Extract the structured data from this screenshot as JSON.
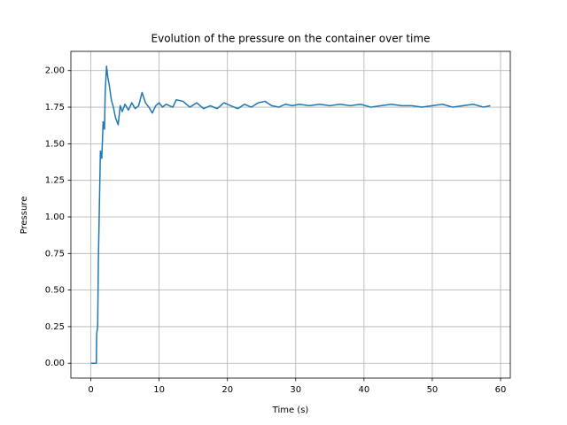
{
  "chart_data": {
    "type": "line",
    "title": "Evolution of the pressure on the container over time",
    "xlabel": "Time (s)",
    "ylabel": "Pressure",
    "x": [
      0,
      0.8,
      0.85,
      1.0,
      1.1,
      1.2,
      1.4,
      1.6,
      1.8,
      2.0,
      2.1,
      2.3,
      2.5,
      2.7,
      3.0,
      3.3,
      3.6,
      4.0,
      4.3,
      4.6,
      5.0,
      5.5,
      6.0,
      6.5,
      7.0,
      7.5,
      8.0,
      8.5,
      9.0,
      9.5,
      10,
      10.5,
      11,
      12,
      12.5,
      13.5,
      14.5,
      15.5,
      16.5,
      17.5,
      18.5,
      19.5,
      20.5,
      21.5,
      22.5,
      23.5,
      24.5,
      25.5,
      26.5,
      27.5,
      28.5,
      29.5,
      30.5,
      32,
      33.5,
      35,
      36.5,
      38,
      39.5,
      41,
      42.5,
      44,
      45.5,
      47,
      48.5,
      50,
      51.5,
      53,
      54.5,
      56,
      57.5,
      58.5
    ],
    "series": [
      {
        "name": "Pressure",
        "color": "#1f77b4",
        "values": [
          0,
          0,
          0.2,
          0.25,
          0.7,
          0.95,
          1.45,
          1.4,
          1.65,
          1.6,
          1.85,
          2.03,
          1.95,
          1.9,
          1.8,
          1.75,
          1.68,
          1.63,
          1.76,
          1.72,
          1.77,
          1.73,
          1.78,
          1.74,
          1.76,
          1.85,
          1.78,
          1.75,
          1.71,
          1.76,
          1.78,
          1.75,
          1.77,
          1.75,
          1.8,
          1.79,
          1.75,
          1.78,
          1.74,
          1.76,
          1.74,
          1.78,
          1.76,
          1.74,
          1.77,
          1.75,
          1.78,
          1.79,
          1.76,
          1.75,
          1.77,
          1.76,
          1.77,
          1.76,
          1.77,
          1.76,
          1.77,
          1.76,
          1.77,
          1.75,
          1.76,
          1.77,
          1.76,
          1.76,
          1.75,
          1.76,
          1.77,
          1.75,
          1.76,
          1.77,
          1.75,
          1.76
        ]
      }
    ],
    "xlim": [
      -2.925,
      61.425
    ],
    "ylim": [
      -0.1015,
      2.1315
    ],
    "xticks": [
      0,
      10,
      20,
      30,
      40,
      50,
      60
    ],
    "yticks": [
      {
        "value": 0,
        "label": "0.00"
      },
      {
        "value": 0.25,
        "label": "0.25"
      },
      {
        "value": 0.5,
        "label": "0.50"
      },
      {
        "value": 0.75,
        "label": "0.75"
      },
      {
        "value": 1,
        "label": "1.00"
      },
      {
        "value": 1.25,
        "label": "1.25"
      },
      {
        "value": 1.5,
        "label": "1.50"
      },
      {
        "value": 1.75,
        "label": "1.75"
      },
      {
        "value": 2,
        "label": "2.00"
      }
    ],
    "grid": true
  }
}
